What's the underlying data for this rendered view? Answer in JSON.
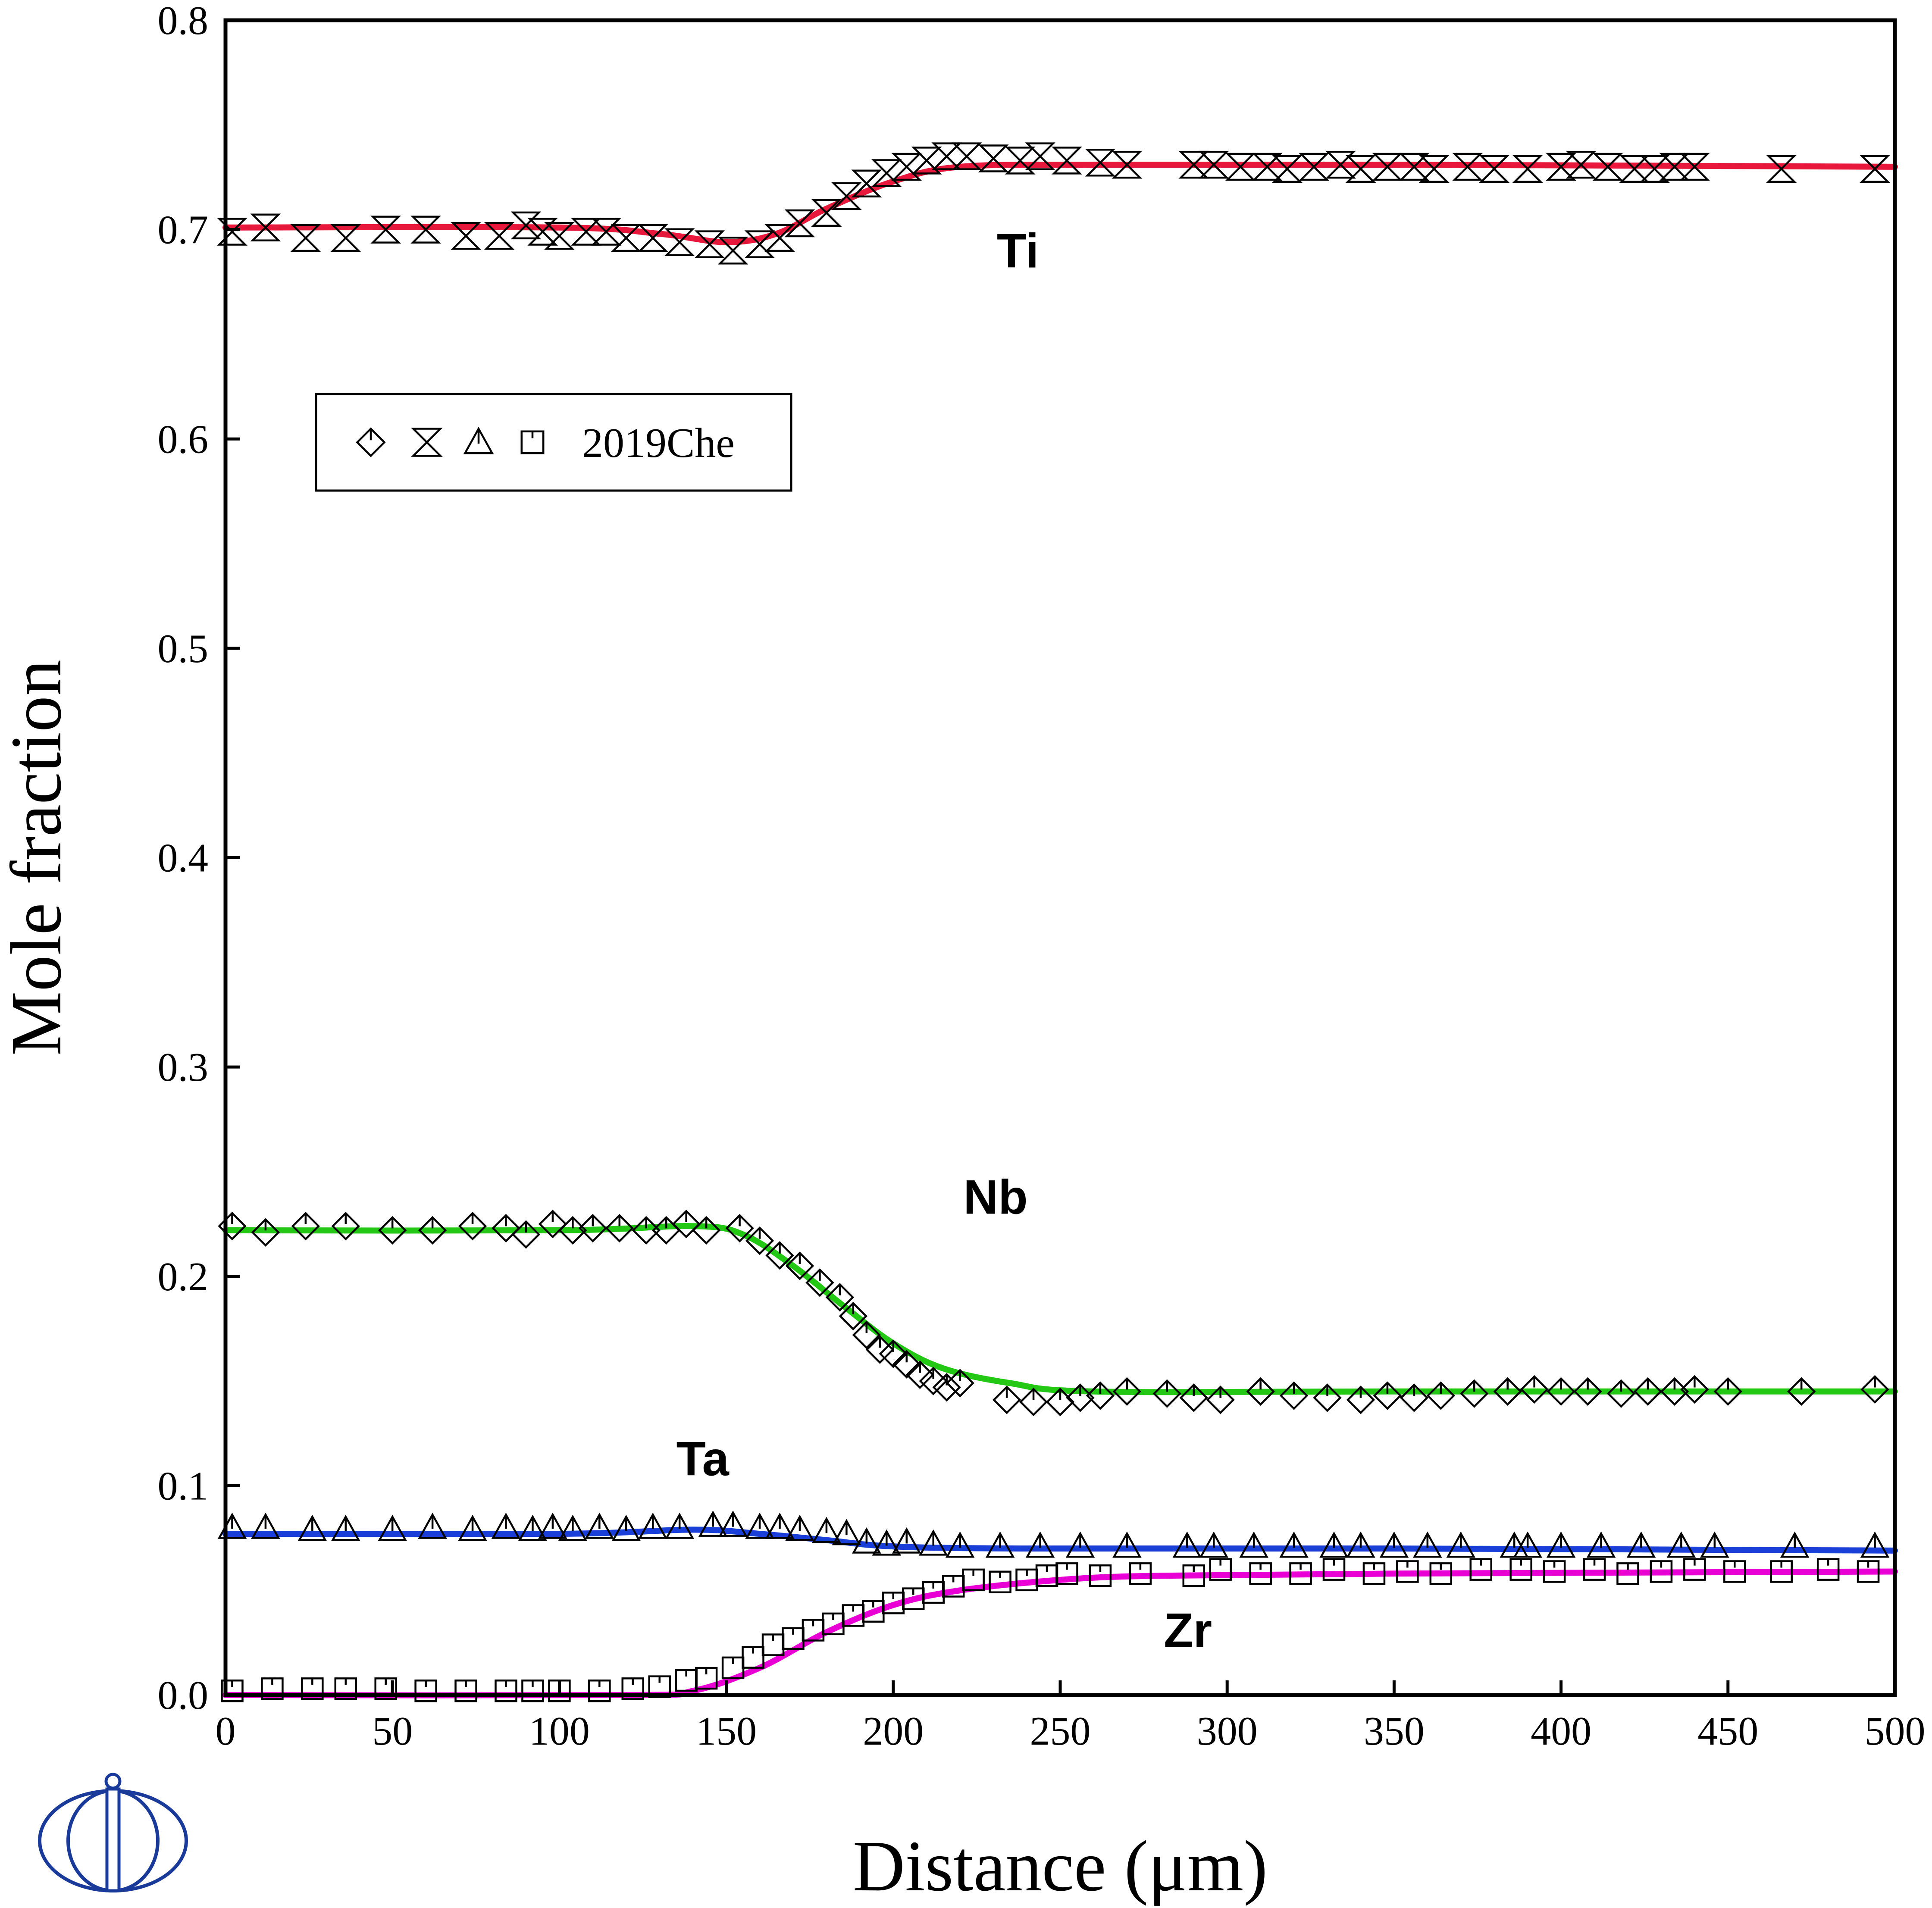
{
  "chart_data": {
    "type": "line",
    "xlabel": "Distance (μm)",
    "ylabel": "Mole fraction",
    "xlim": [
      0,
      500
    ],
    "ylim": [
      0.0,
      0.8
    ],
    "x_ticks": [
      "0",
      "50",
      "100",
      "150",
      "200",
      "250",
      "300",
      "350",
      "400",
      "450",
      "500"
    ],
    "y_ticks": [
      "0.0",
      "0.1",
      "0.2",
      "0.3",
      "0.4",
      "0.5",
      "0.6",
      "0.7",
      "0.8"
    ],
    "grid": false,
    "legend": {
      "position": "top-left",
      "label": "2019Che",
      "markers": [
        "diamond",
        "hourglass",
        "triangle",
        "square"
      ]
    },
    "series": [
      {
        "name": "Ti",
        "label_position": [
          231,
          0.688
        ],
        "color": "#e8173c",
        "marker": "hourglass",
        "curve": [
          [
            0,
            0.701
          ],
          [
            100,
            0.701
          ],
          [
            130,
            0.698
          ],
          [
            150,
            0.694
          ],
          [
            165,
            0.698
          ],
          [
            180,
            0.71
          ],
          [
            200,
            0.723
          ],
          [
            220,
            0.73
          ],
          [
            260,
            0.731
          ],
          [
            350,
            0.731
          ],
          [
            500,
            0.73
          ]
        ],
        "points": [
          [
            2,
            0.699
          ],
          [
            12,
            0.701
          ],
          [
            24,
            0.696
          ],
          [
            36,
            0.696
          ],
          [
            48,
            0.7
          ],
          [
            60,
            0.7
          ],
          [
            72,
            0.697
          ],
          [
            82,
            0.697
          ],
          [
            90,
            0.702
          ],
          [
            95,
            0.699
          ],
          [
            100,
            0.697
          ],
          [
            108,
            0.699
          ],
          [
            114,
            0.699
          ],
          [
            120,
            0.696
          ],
          [
            128,
            0.696
          ],
          [
            136,
            0.694
          ],
          [
            145,
            0.693
          ],
          [
            152,
            0.69
          ],
          [
            160,
            0.693
          ],
          [
            166,
            0.696
          ],
          [
            172,
            0.703
          ],
          [
            180,
            0.708
          ],
          [
            186,
            0.716
          ],
          [
            192,
            0.722
          ],
          [
            198,
            0.727
          ],
          [
            204,
            0.73
          ],
          [
            210,
            0.733
          ],
          [
            216,
            0.735
          ],
          [
            222,
            0.735
          ],
          [
            230,
            0.734
          ],
          [
            238,
            0.733
          ],
          [
            244,
            0.735
          ],
          [
            252,
            0.733
          ],
          [
            262,
            0.732
          ],
          [
            270,
            0.731
          ],
          [
            290,
            0.731
          ],
          [
            296,
            0.731
          ],
          [
            304,
            0.73
          ],
          [
            312,
            0.73
          ],
          [
            318,
            0.729
          ],
          [
            326,
            0.73
          ],
          [
            334,
            0.731
          ],
          [
            340,
            0.729
          ],
          [
            348,
            0.73
          ],
          [
            356,
            0.73
          ],
          [
            362,
            0.729
          ],
          [
            372,
            0.73
          ],
          [
            380,
            0.729
          ],
          [
            390,
            0.729
          ],
          [
            400,
            0.73
          ],
          [
            406,
            0.731
          ],
          [
            414,
            0.73
          ],
          [
            422,
            0.729
          ],
          [
            428,
            0.729
          ],
          [
            434,
            0.73
          ],
          [
            440,
            0.73
          ],
          [
            466,
            0.729
          ],
          [
            494,
            0.729
          ]
        ]
      },
      {
        "name": "Nb",
        "label_position": [
          221,
          0.236
        ],
        "color": "#22c814",
        "marker": "diamond",
        "curve": [
          [
            0,
            0.222
          ],
          [
            100,
            0.222
          ],
          [
            140,
            0.224
          ],
          [
            155,
            0.22
          ],
          [
            170,
            0.205
          ],
          [
            185,
            0.186
          ],
          [
            200,
            0.168
          ],
          [
            215,
            0.156
          ],
          [
            235,
            0.149
          ],
          [
            260,
            0.145
          ],
          [
            350,
            0.145
          ],
          [
            500,
            0.145
          ]
        ],
        "points": [
          [
            2,
            0.224
          ],
          [
            12,
            0.221
          ],
          [
            24,
            0.224
          ],
          [
            36,
            0.224
          ],
          [
            50,
            0.222
          ],
          [
            62,
            0.222
          ],
          [
            74,
            0.224
          ],
          [
            84,
            0.223
          ],
          [
            90,
            0.22
          ],
          [
            98,
            0.225
          ],
          [
            104,
            0.222
          ],
          [
            110,
            0.223
          ],
          [
            118,
            0.223
          ],
          [
            126,
            0.222
          ],
          [
            132,
            0.222
          ],
          [
            138,
            0.225
          ],
          [
            144,
            0.222
          ],
          [
            154,
            0.223
          ],
          [
            160,
            0.217
          ],
          [
            166,
            0.21
          ],
          [
            172,
            0.205
          ],
          [
            178,
            0.197
          ],
          [
            184,
            0.19
          ],
          [
            188,
            0.181
          ],
          [
            192,
            0.172
          ],
          [
            196,
            0.165
          ],
          [
            200,
            0.163
          ],
          [
            204,
            0.158
          ],
          [
            208,
            0.153
          ],
          [
            212,
            0.15
          ],
          [
            216,
            0.147
          ],
          [
            220,
            0.149
          ],
          [
            234,
            0.141
          ],
          [
            242,
            0.14
          ],
          [
            250,
            0.14
          ],
          [
            256,
            0.142
          ],
          [
            262,
            0.143
          ],
          [
            270,
            0.145
          ],
          [
            282,
            0.144
          ],
          [
            290,
            0.142
          ],
          [
            298,
            0.141
          ],
          [
            310,
            0.145
          ],
          [
            320,
            0.143
          ],
          [
            330,
            0.142
          ],
          [
            340,
            0.141
          ],
          [
            348,
            0.143
          ],
          [
            356,
            0.142
          ],
          [
            364,
            0.143
          ],
          [
            374,
            0.144
          ],
          [
            384,
            0.145
          ],
          [
            392,
            0.146
          ],
          [
            400,
            0.145
          ],
          [
            408,
            0.145
          ],
          [
            418,
            0.144
          ],
          [
            426,
            0.145
          ],
          [
            434,
            0.145
          ],
          [
            440,
            0.146
          ],
          [
            450,
            0.145
          ],
          [
            472,
            0.145
          ],
          [
            494,
            0.146
          ]
        ]
      },
      {
        "name": "Ta",
        "label_position": [
          135,
          0.111
        ],
        "color": "#1a3fd9",
        "marker": "triangle",
        "curve": [
          [
            0,
            0.077
          ],
          [
            100,
            0.077
          ],
          [
            140,
            0.079
          ],
          [
            160,
            0.077
          ],
          [
            180,
            0.074
          ],
          [
            200,
            0.071
          ],
          [
            240,
            0.07
          ],
          [
            350,
            0.07
          ],
          [
            500,
            0.069
          ]
        ],
        "points": [
          [
            2,
            0.08
          ],
          [
            12,
            0.08
          ],
          [
            26,
            0.079
          ],
          [
            36,
            0.079
          ],
          [
            50,
            0.079
          ],
          [
            62,
            0.08
          ],
          [
            74,
            0.079
          ],
          [
            84,
            0.08
          ],
          [
            92,
            0.079
          ],
          [
            98,
            0.08
          ],
          [
            104,
            0.079
          ],
          [
            112,
            0.08
          ],
          [
            120,
            0.079
          ],
          [
            128,
            0.08
          ],
          [
            136,
            0.08
          ],
          [
            146,
            0.081
          ],
          [
            152,
            0.081
          ],
          [
            160,
            0.08
          ],
          [
            166,
            0.08
          ],
          [
            172,
            0.079
          ],
          [
            180,
            0.078
          ],
          [
            186,
            0.077
          ],
          [
            192,
            0.073
          ],
          [
            198,
            0.072
          ],
          [
            204,
            0.073
          ],
          [
            212,
            0.072
          ],
          [
            220,
            0.071
          ],
          [
            232,
            0.071
          ],
          [
            244,
            0.071
          ],
          [
            256,
            0.071
          ],
          [
            270,
            0.071
          ],
          [
            288,
            0.071
          ],
          [
            296,
            0.071
          ],
          [
            308,
            0.071
          ],
          [
            320,
            0.071
          ],
          [
            332,
            0.071
          ],
          [
            340,
            0.071
          ],
          [
            350,
            0.071
          ],
          [
            360,
            0.071
          ],
          [
            370,
            0.071
          ],
          [
            386,
            0.071
          ],
          [
            390,
            0.071
          ],
          [
            400,
            0.071
          ],
          [
            412,
            0.071
          ],
          [
            424,
            0.071
          ],
          [
            436,
            0.071
          ],
          [
            446,
            0.071
          ],
          [
            470,
            0.071
          ],
          [
            494,
            0.071
          ]
        ]
      },
      {
        "name": "Zr",
        "label_position": [
          281,
          0.029
        ],
        "color": "#e800d4",
        "marker": "square",
        "curve": [
          [
            0,
            0.0
          ],
          [
            120,
            0.0
          ],
          [
            140,
            0.002
          ],
          [
            160,
            0.013
          ],
          [
            180,
            0.03
          ],
          [
            200,
            0.043
          ],
          [
            220,
            0.05
          ],
          [
            250,
            0.055
          ],
          [
            280,
            0.057
          ],
          [
            350,
            0.058
          ],
          [
            500,
            0.059
          ]
        ],
        "points": [
          [
            2,
            0.002
          ],
          [
            14,
            0.003
          ],
          [
            26,
            0.003
          ],
          [
            36,
            0.003
          ],
          [
            48,
            0.003
          ],
          [
            60,
            0.002
          ],
          [
            72,
            0.002
          ],
          [
            84,
            0.002
          ],
          [
            92,
            0.002
          ],
          [
            100,
            0.002
          ],
          [
            112,
            0.002
          ],
          [
            122,
            0.003
          ],
          [
            130,
            0.004
          ],
          [
            138,
            0.007
          ],
          [
            144,
            0.008
          ],
          [
            152,
            0.013
          ],
          [
            158,
            0.018
          ],
          [
            164,
            0.024
          ],
          [
            170,
            0.027
          ],
          [
            176,
            0.031
          ],
          [
            182,
            0.034
          ],
          [
            188,
            0.038
          ],
          [
            194,
            0.04
          ],
          [
            200,
            0.044
          ],
          [
            206,
            0.046
          ],
          [
            212,
            0.049
          ],
          [
            218,
            0.052
          ],
          [
            224,
            0.055
          ],
          [
            232,
            0.054
          ],
          [
            240,
            0.055
          ],
          [
            246,
            0.057
          ],
          [
            252,
            0.058
          ],
          [
            262,
            0.057
          ],
          [
            274,
            0.058
          ],
          [
            290,
            0.057
          ],
          [
            298,
            0.06
          ],
          [
            310,
            0.058
          ],
          [
            322,
            0.058
          ],
          [
            332,
            0.06
          ],
          [
            344,
            0.058
          ],
          [
            354,
            0.059
          ],
          [
            364,
            0.058
          ],
          [
            376,
            0.06
          ],
          [
            388,
            0.06
          ],
          [
            398,
            0.059
          ],
          [
            410,
            0.06
          ],
          [
            420,
            0.058
          ],
          [
            430,
            0.059
          ],
          [
            440,
            0.06
          ],
          [
            452,
            0.059
          ],
          [
            466,
            0.059
          ],
          [
            480,
            0.06
          ],
          [
            492,
            0.059
          ]
        ]
      }
    ]
  },
  "watermark": {
    "kind": "publisher-logo",
    "color": "#1a3a9a"
  }
}
